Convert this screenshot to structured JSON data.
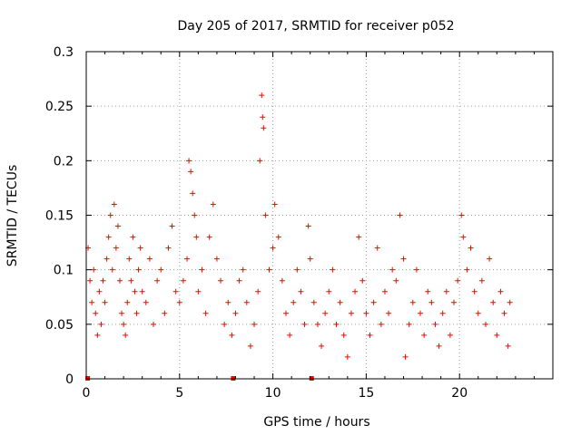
{
  "chart_data": {
    "type": "scatter",
    "title": "Day 205 of 2017, SRMTID for receiver p052",
    "xlabel": "GPS time / hours",
    "ylabel": "SRMTID / TECUs",
    "xlim": [
      0,
      25
    ],
    "ylim": [
      0,
      0.3
    ],
    "x_ticks": [
      0,
      5,
      10,
      15,
      20
    ],
    "x_tick_labels": [
      "0",
      "5",
      "10",
      "15",
      "20"
    ],
    "y_ticks": [
      0,
      0.05,
      0.1,
      0.15,
      0.2,
      0.25,
      0.3
    ],
    "y_tick_labels": [
      "0",
      "0.05",
      "0.1",
      "0.15",
      "0.2",
      "0.25",
      "0.3"
    ],
    "grid": true,
    "marker": "+",
    "series": [
      {
        "name": "SRMTID",
        "color": "#ff0000",
        "points": [
          [
            0.1,
            0.12
          ],
          [
            0.2,
            0.09
          ],
          [
            0.3,
            0.07
          ],
          [
            0.4,
            0.1
          ],
          [
            0.5,
            0.06
          ],
          [
            0.6,
            0.04
          ],
          [
            0.7,
            0.08
          ],
          [
            0.8,
            0.05
          ],
          [
            0.9,
            0.09
          ],
          [
            1.0,
            0.07
          ],
          [
            1.1,
            0.11
          ],
          [
            1.2,
            0.13
          ],
          [
            1.3,
            0.15
          ],
          [
            1.4,
            0.1
          ],
          [
            1.5,
            0.16
          ],
          [
            1.6,
            0.12
          ],
          [
            1.7,
            0.14
          ],
          [
            1.8,
            0.09
          ],
          [
            1.9,
            0.06
          ],
          [
            2.0,
            0.05
          ],
          [
            2.1,
            0.04
          ],
          [
            2.2,
            0.07
          ],
          [
            2.3,
            0.11
          ],
          [
            2.4,
            0.09
          ],
          [
            2.5,
            0.13
          ],
          [
            2.6,
            0.08
          ],
          [
            2.7,
            0.06
          ],
          [
            2.8,
            0.1
          ],
          [
            2.9,
            0.12
          ],
          [
            3.0,
            0.08
          ],
          [
            3.2,
            0.07
          ],
          [
            3.4,
            0.11
          ],
          [
            3.6,
            0.05
          ],
          [
            3.8,
            0.09
          ],
          [
            4.0,
            0.1
          ],
          [
            4.2,
            0.06
          ],
          [
            4.4,
            0.12
          ],
          [
            4.6,
            0.14
          ],
          [
            4.8,
            0.08
          ],
          [
            5.0,
            0.07
          ],
          [
            5.2,
            0.09
          ],
          [
            5.4,
            0.11
          ],
          [
            5.5,
            0.2
          ],
          [
            5.6,
            0.19
          ],
          [
            5.7,
            0.17
          ],
          [
            5.8,
            0.15
          ],
          [
            5.9,
            0.13
          ],
          [
            6.0,
            0.08
          ],
          [
            6.2,
            0.1
          ],
          [
            6.4,
            0.06
          ],
          [
            6.6,
            0.13
          ],
          [
            6.8,
            0.16
          ],
          [
            7.0,
            0.11
          ],
          [
            7.2,
            0.09
          ],
          [
            7.4,
            0.05
          ],
          [
            7.6,
            0.07
          ],
          [
            7.8,
            0.04
          ],
          [
            8.0,
            0.06
          ],
          [
            8.2,
            0.09
          ],
          [
            8.4,
            0.1
          ],
          [
            8.6,
            0.07
          ],
          [
            8.8,
            0.03
          ],
          [
            9.0,
            0.05
          ],
          [
            9.2,
            0.08
          ],
          [
            9.3,
            0.2
          ],
          [
            9.4,
            0.26
          ],
          [
            9.45,
            0.24
          ],
          [
            9.5,
            0.23
          ],
          [
            9.6,
            0.15
          ],
          [
            9.8,
            0.1
          ],
          [
            10.0,
            0.12
          ],
          [
            10.1,
            0.16
          ],
          [
            10.3,
            0.13
          ],
          [
            10.5,
            0.09
          ],
          [
            10.7,
            0.06
          ],
          [
            10.9,
            0.04
          ],
          [
            11.1,
            0.07
          ],
          [
            11.3,
            0.1
          ],
          [
            11.5,
            0.08
          ],
          [
            11.7,
            0.05
          ],
          [
            11.9,
            0.14
          ],
          [
            12.0,
            0.11
          ],
          [
            12.2,
            0.07
          ],
          [
            12.4,
            0.05
          ],
          [
            12.6,
            0.03
          ],
          [
            12.8,
            0.06
          ],
          [
            13.0,
            0.08
          ],
          [
            13.2,
            0.1
          ],
          [
            13.4,
            0.05
          ],
          [
            13.6,
            0.07
          ],
          [
            13.8,
            0.04
          ],
          [
            14.0,
            0.02
          ],
          [
            14.2,
            0.06
          ],
          [
            14.4,
            0.08
          ],
          [
            14.6,
            0.13
          ],
          [
            14.8,
            0.09
          ],
          [
            15.0,
            0.06
          ],
          [
            15.2,
            0.04
          ],
          [
            15.4,
            0.07
          ],
          [
            15.6,
            0.12
          ],
          [
            15.8,
            0.05
          ],
          [
            16.0,
            0.08
          ],
          [
            16.2,
            0.06
          ],
          [
            16.4,
            0.1
          ],
          [
            16.6,
            0.09
          ],
          [
            16.8,
            0.15
          ],
          [
            17.0,
            0.11
          ],
          [
            17.1,
            0.02
          ],
          [
            17.3,
            0.05
          ],
          [
            17.5,
            0.07
          ],
          [
            17.7,
            0.1
          ],
          [
            17.9,
            0.06
          ],
          [
            18.1,
            0.04
          ],
          [
            18.3,
            0.08
          ],
          [
            18.5,
            0.07
          ],
          [
            18.7,
            0.05
          ],
          [
            18.9,
            0.03
          ],
          [
            19.1,
            0.06
          ],
          [
            19.3,
            0.08
          ],
          [
            19.5,
            0.04
          ],
          [
            19.7,
            0.07
          ],
          [
            19.9,
            0.09
          ],
          [
            20.1,
            0.15
          ],
          [
            20.2,
            0.13
          ],
          [
            20.4,
            0.1
          ],
          [
            20.6,
            0.12
          ],
          [
            20.8,
            0.08
          ],
          [
            21.0,
            0.06
          ],
          [
            21.2,
            0.09
          ],
          [
            21.4,
            0.05
          ],
          [
            21.6,
            0.11
          ],
          [
            21.8,
            0.07
          ],
          [
            22.0,
            0.04
          ],
          [
            22.2,
            0.08
          ],
          [
            22.4,
            0.06
          ],
          [
            22.6,
            0.03
          ],
          [
            22.7,
            0.07
          ]
        ]
      }
    ]
  }
}
